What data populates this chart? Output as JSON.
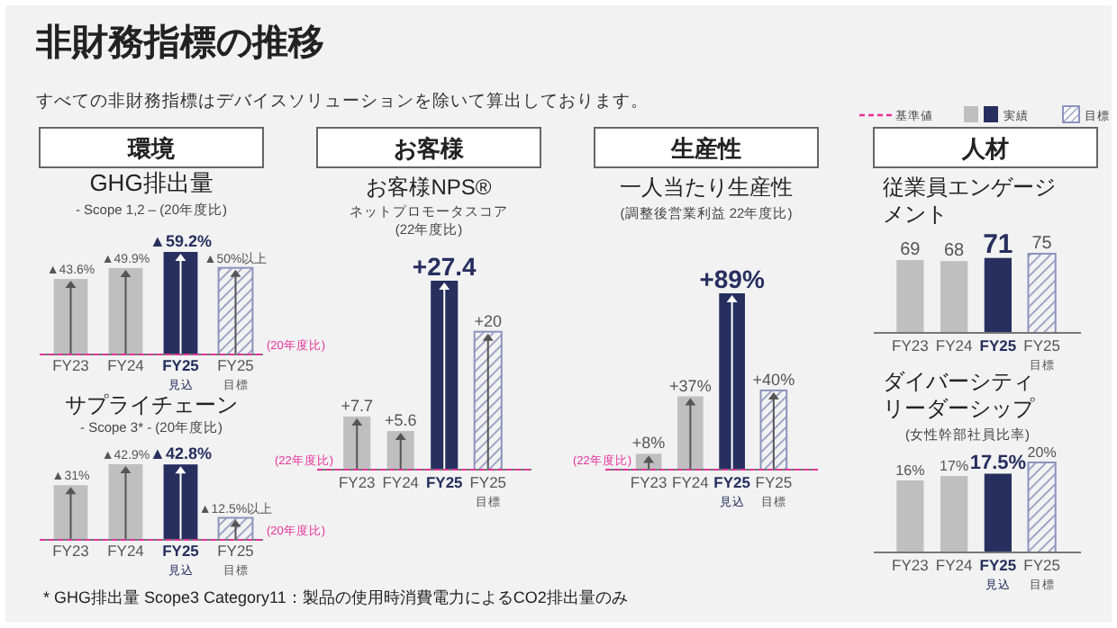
{
  "chart_data": [
    {
      "type": "other",
      "title": "非財務指標の推移",
      "subtitle": "すべての非財務指標はデバイスソリューションを除いて算出しております。",
      "annotations": [
        "環境",
        "お客様",
        "生産性",
        "人材",
        "基準値",
        "実績",
        "目標",
        "* GHG排出量 Scope3 Category11：製品の使用時消費電力によるCO2排出量のみ"
      ]
    },
    {
      "type": "bar",
      "title": "GHG排出量",
      "subtitle": "- Scope 1,2 – (20年度比)",
      "categories": [
        "FY23",
        "FY24",
        "FY25$_{見込}$",
        "FY25$_{目標}$"
      ],
      "series": [
        {
          "values": [
            43.6,
            49.9,
            59.2,
            null
          ],
          "colors": [
            "#bfbfbf",
            "#bfbfbf",
            "#262f5e",
            null
          ],
          "value_labels": [
            "▲43.6%",
            "▲49.9%",
            "▲59.2%",
            null
          ]
        },
        {
          "values": [
            null,
            null,
            null,
            50
          ],
          "color": "#8c93bd",
          "value_labels": [
            null,
            null,
            null,
            "▲50%以上"
          ]
        }
      ],
      "ref_lines": [
        {
          "axis": "y",
          "value": 0,
          "label": "(20年度比)",
          "color": "#e5309a",
          "line_style": "dashed"
        }
      ]
    },
    {
      "type": "bar",
      "title": "サプライチェーン",
      "subtitle": "- Scope 3* - (20年度比)",
      "categories": [
        "FY23",
        "FY24",
        "FY25$_{見込}$",
        "FY25$_{目標}$"
      ],
      "series": [
        {
          "values": [
            31,
            42.9,
            42.8,
            null
          ],
          "colors": [
            "#bfbfbf",
            "#bfbfbf",
            "#262f5e",
            null
          ],
          "value_labels": [
            "▲31%",
            "▲42.9%",
            "▲42.8%",
            null
          ]
        },
        {
          "values": [
            null,
            null,
            null,
            12.5
          ],
          "color": "#8c93bd",
          "value_labels": [
            null,
            null,
            null,
            "▲12.5%以上"
          ]
        }
      ],
      "ref_lines": [
        {
          "axis": "y",
          "value": 0,
          "label": "(20年度比)",
          "color": "#e5309a",
          "line_style": "dashed"
        }
      ]
    },
    {
      "type": "bar",
      "title": "お客様NPS®",
      "subtitle": "ネットプロモータスコア\n(22年度比)",
      "categories": [
        "FY23",
        "FY24",
        "FY25",
        "FY25$_{目標}$"
      ],
      "series": [
        {
          "values": [
            7.7,
            5.6,
            27.4,
            null
          ],
          "colors": [
            "#bfbfbf",
            "#bfbfbf",
            "#262f5e",
            null
          ],
          "value_labels": [
            "+7.7",
            "+5.6",
            "+27.4",
            null
          ]
        },
        {
          "values": [
            null,
            null,
            null,
            20
          ],
          "color": "#8c93bd",
          "value_labels": [
            null,
            null,
            null,
            "+20"
          ]
        }
      ],
      "ref_lines": [
        {
          "axis": "y",
          "value": 0,
          "label": "(22年度比)",
          "color": "#e5309a",
          "line_style": "dashed"
        }
      ]
    },
    {
      "type": "bar",
      "title": "一人当たり生産性",
      "subtitle": "(調整後営業利益 22年度比)",
      "categories": [
        "FY23",
        "FY24",
        "FY25$_{見込}$",
        "FY25$_{目標}$"
      ],
      "series": [
        {
          "values": [
            8,
            37,
            89,
            null
          ],
          "colors": [
            "#bfbfbf",
            "#bfbfbf",
            "#262f5e",
            null
          ],
          "value_labels": [
            "+8%",
            "+37%",
            "+89%",
            null
          ]
        },
        {
          "values": [
            null,
            null,
            null,
            40
          ],
          "color": "#8c93bd",
          "value_labels": [
            null,
            null,
            null,
            "+40%"
          ]
        }
      ],
      "ref_lines": [
        {
          "axis": "y",
          "value": 0,
          "label": "(22年度比)",
          "color": "#e5309a",
          "line_style": "dashed"
        }
      ]
    },
    {
      "type": "bar",
      "title": "従業員エンゲージメント",
      "data_labels": true,
      "categories": [
        "FY23",
        "FY24",
        "FY25",
        "FY25$_{目標}$"
      ],
      "series": [
        {
          "values": [
            69,
            68,
            71,
            null
          ],
          "colors": [
            "#bfbfbf",
            "#bfbfbf",
            "#262f5e",
            null
          ]
        },
        {
          "values": [
            null,
            null,
            null,
            75
          ],
          "color": "#8c93bd"
        }
      ]
    },
    {
      "type": "bar",
      "title": "ダイバーシティリーダーシップ",
      "subtitle": "(女性幹部社員比率)",
      "categories": [
        "FY23",
        "FY24",
        "FY25$_{見込}$",
        "FY25$_{目標}$"
      ],
      "series": [
        {
          "values": [
            16,
            17,
            17.5,
            null
          ],
          "colors": [
            "#bfbfbf",
            "#bfbfbf",
            "#262f5e",
            null
          ],
          "value_labels": [
            "16%",
            "17%",
            "17.5%",
            null
          ]
        },
        {
          "values": [
            null,
            null,
            null,
            20
          ],
          "color": "#8c93bd",
          "value_labels": [
            null,
            null,
            null,
            "20%"
          ]
        }
      ]
    }
  ]
}
